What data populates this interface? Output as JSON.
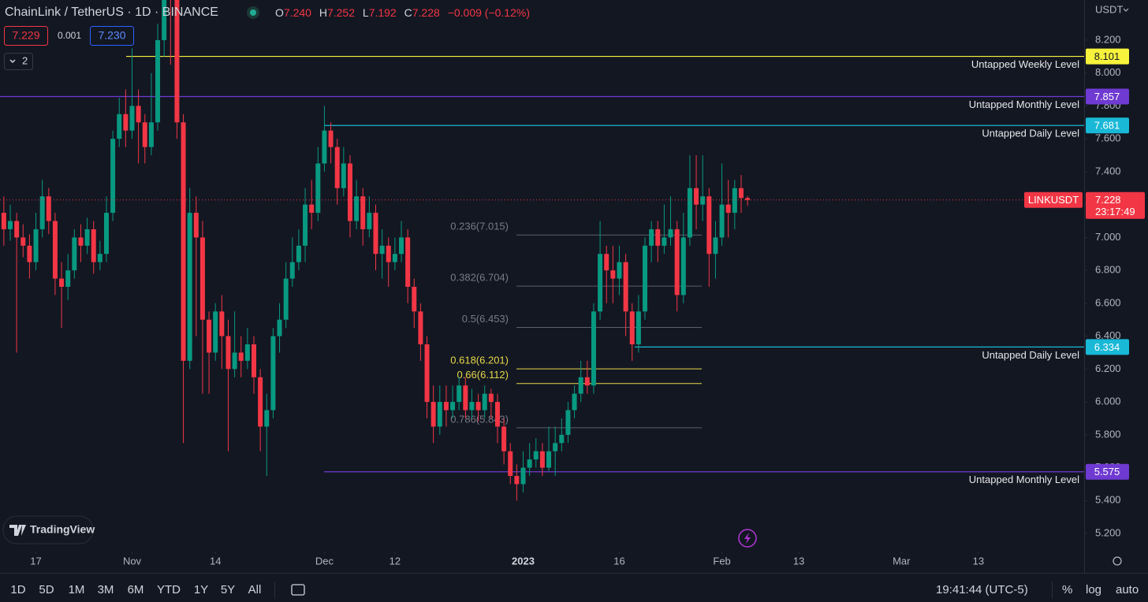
{
  "header": {
    "symbol": "ChainLink / TetherUS · 1D · BINANCE",
    "ohlc": [
      {
        "key": "O",
        "value": "7.240"
      },
      {
        "key": "H",
        "value": "7.252"
      },
      {
        "key": "L",
        "value": "7.192"
      },
      {
        "key": "C",
        "value": "7.228"
      }
    ],
    "change": "−0.009 (−0.12%)",
    "bid": "7.229",
    "spread": "0.001",
    "ask": "7.230",
    "indicators": "2",
    "currency": "USDT"
  },
  "chart_data": {
    "type": "candlestick",
    "up_color": "#089981",
    "down_color": "#f23645",
    "open": [
      7.15,
      7.05,
      7.1,
      7.0,
      6.95,
      6.85,
      7.05,
      7.25,
      7.1,
      6.75,
      6.7,
      6.8,
      7.0,
      6.95,
      7.05,
      6.85,
      6.9,
      7.15,
      7.6,
      7.75,
      7.65,
      7.8,
      7.7,
      7.55,
      7.7,
      8.2,
      8.6,
      8.45,
      7.7,
      6.25,
      7.15,
      7.0,
      6.5,
      6.3,
      6.55,
      6.4,
      6.2,
      6.3,
      6.25,
      6.35,
      6.15,
      5.85,
      5.95,
      6.4,
      6.5,
      6.75,
      6.85,
      6.95,
      7.2,
      7.15,
      7.45,
      7.65,
      7.55,
      7.3,
      7.45,
      7.1,
      7.25,
      7.05,
      7.15,
      6.9,
      6.95,
      6.85,
      6.9,
      7.0,
      6.7,
      6.55,
      6.35,
      6.0,
      5.85,
      6.0,
      5.95,
      6.0,
      6.1,
      5.95,
      6.0,
      5.95,
      6.05,
      6.0,
      5.85,
      5.7,
      5.55,
      5.5,
      5.6,
      5.65,
      5.7,
      5.6,
      5.7,
      5.75,
      5.8,
      5.95,
      6.05,
      6.15,
      6.1,
      6.55,
      6.9,
      6.8,
      6.75,
      6.85,
      6.55,
      6.35,
      6.55,
      6.95,
      7.05,
      6.95,
      7.0,
      7.05,
      6.65,
      7.0,
      7.3,
      7.2,
      7.25,
      6.9,
      7.0,
      7.2,
      7.15,
      7.3,
      7.24
    ],
    "high": [
      7.25,
      7.2,
      7.15,
      7.08,
      7.02,
      7.15,
      7.35,
      7.3,
      7.15,
      6.85,
      6.9,
      7.05,
      7.08,
      7.12,
      7.1,
      6.98,
      7.25,
      7.65,
      7.85,
      7.9,
      8.15,
      7.9,
      7.75,
      8.0,
      8.3,
      8.75,
      8.7,
      8.5,
      7.75,
      7.3,
      7.25,
      7.1,
      6.55,
      6.6,
      6.65,
      6.5,
      6.55,
      6.4,
      6.45,
      6.4,
      6.2,
      6.05,
      6.45,
      6.6,
      6.85,
      7.0,
      7.05,
      7.3,
      7.35,
      7.55,
      7.8,
      7.7,
      7.6,
      7.55,
      7.5,
      7.35,
      7.3,
      7.25,
      7.2,
      7.05,
      7.0,
      7.0,
      7.1,
      7.05,
      6.75,
      6.6,
      6.4,
      6.1,
      6.1,
      6.1,
      6.1,
      6.15,
      6.15,
      6.08,
      6.05,
      6.1,
      6.08,
      6.05,
      5.9,
      5.75,
      5.62,
      5.7,
      5.75,
      5.78,
      5.75,
      5.85,
      5.85,
      5.9,
      6.0,
      6.1,
      6.25,
      6.25,
      6.6,
      7.1,
      6.95,
      6.95,
      6.95,
      6.9,
      6.6,
      6.65,
      7.0,
      7.1,
      7.1,
      7.2,
      7.25,
      7.1,
      7.15,
      7.5,
      7.5,
      7.5,
      7.3,
      7.1,
      7.45,
      7.35,
      7.35,
      7.38,
      7.252
    ],
    "low": [
      6.95,
      6.98,
      6.3,
      6.88,
      6.75,
      6.8,
      7.0,
      7.02,
      6.65,
      6.45,
      6.62,
      6.75,
      6.85,
      6.9,
      6.78,
      6.8,
      6.85,
      7.1,
      7.55,
      7.55,
      7.6,
      7.45,
      7.45,
      7.5,
      7.65,
      8.1,
      8.05,
      7.6,
      5.75,
      6.2,
      6.4,
      6.05,
      6.05,
      6.25,
      6.2,
      5.7,
      6.15,
      6.15,
      6.2,
      6.05,
      5.7,
      5.55,
      5.9,
      6.3,
      6.45,
      6.7,
      6.8,
      6.85,
      7.05,
      7.1,
      7.4,
      7.45,
      7.2,
      7.25,
      7.0,
      7.05,
      6.95,
      7.0,
      6.8,
      6.75,
      6.7,
      6.8,
      6.85,
      6.6,
      6.45,
      6.25,
      5.9,
      5.75,
      5.8,
      5.85,
      5.9,
      5.95,
      5.9,
      5.9,
      5.88,
      5.9,
      5.9,
      5.75,
      5.62,
      5.5,
      5.4,
      5.45,
      5.55,
      5.6,
      5.55,
      5.58,
      5.55,
      5.7,
      5.75,
      5.9,
      6.0,
      6.05,
      6.05,
      6.5,
      6.6,
      6.6,
      6.65,
      6.4,
      6.25,
      6.3,
      6.5,
      6.85,
      6.85,
      6.9,
      6.95,
      6.55,
      6.6,
      6.95,
      7.05,
      7.1,
      6.7,
      6.75,
      6.95,
      7.0,
      7.05,
      7.15,
      7.192
    ],
    "close": [
      7.05,
      7.1,
      7.0,
      6.95,
      6.85,
      7.05,
      7.25,
      7.1,
      6.75,
      6.7,
      6.8,
      7.0,
      6.95,
      7.05,
      6.85,
      6.9,
      7.15,
      7.6,
      7.75,
      7.65,
      7.8,
      7.7,
      7.55,
      7.7,
      8.2,
      8.6,
      8.45,
      7.7,
      6.25,
      7.15,
      7.0,
      6.5,
      6.3,
      6.55,
      6.4,
      6.2,
      6.3,
      6.25,
      6.35,
      6.15,
      5.85,
      5.95,
      6.4,
      6.5,
      6.75,
      6.85,
      6.95,
      7.2,
      7.15,
      7.45,
      7.65,
      7.55,
      7.3,
      7.45,
      7.1,
      7.25,
      7.05,
      7.15,
      6.9,
      6.95,
      6.85,
      6.9,
      7.0,
      6.7,
      6.55,
      6.35,
      6.0,
      5.85,
      6.0,
      5.95,
      6.0,
      6.1,
      5.95,
      6.0,
      5.95,
      6.05,
      6.0,
      5.85,
      5.7,
      5.55,
      5.5,
      5.6,
      5.65,
      5.7,
      5.6,
      5.7,
      5.75,
      5.8,
      5.95,
      6.05,
      6.15,
      6.1,
      6.55,
      6.9,
      6.8,
      6.75,
      6.85,
      6.55,
      6.35,
      6.55,
      6.95,
      7.05,
      6.95,
      7.0,
      7.05,
      6.65,
      7.0,
      7.3,
      7.2,
      7.25,
      6.9,
      7.0,
      7.2,
      7.15,
      7.3,
      7.24,
      7.228
    ],
    "xlim": [
      -0.6,
      168.5
    ],
    "xticks": [
      {
        "value": 5,
        "label": "17"
      },
      {
        "value": 20,
        "label": "Nov"
      },
      {
        "value": 33,
        "label": "14"
      },
      {
        "value": 50,
        "label": "Dec"
      },
      {
        "value": 61,
        "label": "12"
      },
      {
        "value": 81,
        "label": "2023"
      },
      {
        "value": 96,
        "label": "16"
      },
      {
        "value": 112,
        "label": "Feb"
      },
      {
        "value": 124,
        "label": "13"
      },
      {
        "value": 140,
        "label": "Mar"
      },
      {
        "value": 152,
        "label": "13"
      }
    ],
    "ylim": [
      5.09,
      8.444
    ],
    "yticks": [
      {
        "value": 5.2,
        "label": "5.200"
      },
      {
        "value": 5.4,
        "label": "5.400"
      },
      {
        "value": 5.6,
        "label": "5.600"
      },
      {
        "value": 5.8,
        "label": "5.800"
      },
      {
        "value": 6.0,
        "label": "6.000"
      },
      {
        "value": 6.2,
        "label": "6.200"
      },
      {
        "value": 6.4,
        "label": "6.400"
      },
      {
        "value": 6.6,
        "label": "6.600"
      },
      {
        "value": 6.8,
        "label": "6.800"
      },
      {
        "value": 7.0,
        "label": "7.000"
      },
      {
        "value": 7.2,
        "label": "7.200"
      },
      {
        "value": 7.4,
        "label": "7.400"
      },
      {
        "value": 7.6,
        "label": "7.600"
      },
      {
        "value": 7.8,
        "label": "7.800"
      },
      {
        "value": 8.0,
        "label": "8.000"
      },
      {
        "value": 8.2,
        "label": "8.200"
      }
    ],
    "levels": [
      {
        "value": 8.101,
        "text": "Untapped Weekly Level",
        "color": "#f7f23c"
      },
      {
        "value": 7.857,
        "text": "Untapped Monthly Level",
        "color": "#6f3ad1"
      },
      {
        "value": 7.681,
        "text": "Untapped Daily Level",
        "color": "#19b8d6"
      },
      {
        "value": 6.334,
        "text": "Untapped Daily Level",
        "color": "#19b8d6"
      },
      {
        "value": 5.575,
        "text": "Untapped Monthly Level",
        "color": "#6f3ad1"
      }
    ],
    "fib": [
      {
        "value": 7.015,
        "label": "0.236(7.015)",
        "color": "#5d606b"
      },
      {
        "value": 6.704,
        "label": "0.382(6.704)",
        "color": "#5d606b"
      },
      {
        "value": 6.453,
        "label": "0.5(6.453)",
        "color": "#5d606b"
      },
      {
        "value": 6.201,
        "label": "0.618(6.201)",
        "color": "#e8d84a"
      },
      {
        "value": 6.112,
        "label": "0.66(6.112)",
        "color": "#e8d84a"
      },
      {
        "value": 5.843,
        "label": "0.786(5.843)",
        "color": "#5d606b"
      }
    ],
    "last": {
      "name": "LINKUSDT",
      "price": 7.228,
      "countdown": "23:17:49",
      "color": "#f23645"
    }
  },
  "logo": "TradingView",
  "toolbar": {
    "ranges": [
      "1D",
      "5D",
      "1M",
      "3M",
      "6M",
      "YTD",
      "1Y",
      "5Y",
      "All"
    ],
    "time": "19:41:44 (UTC-5)",
    "percent": "%",
    "log": "log",
    "auto": "auto"
  }
}
